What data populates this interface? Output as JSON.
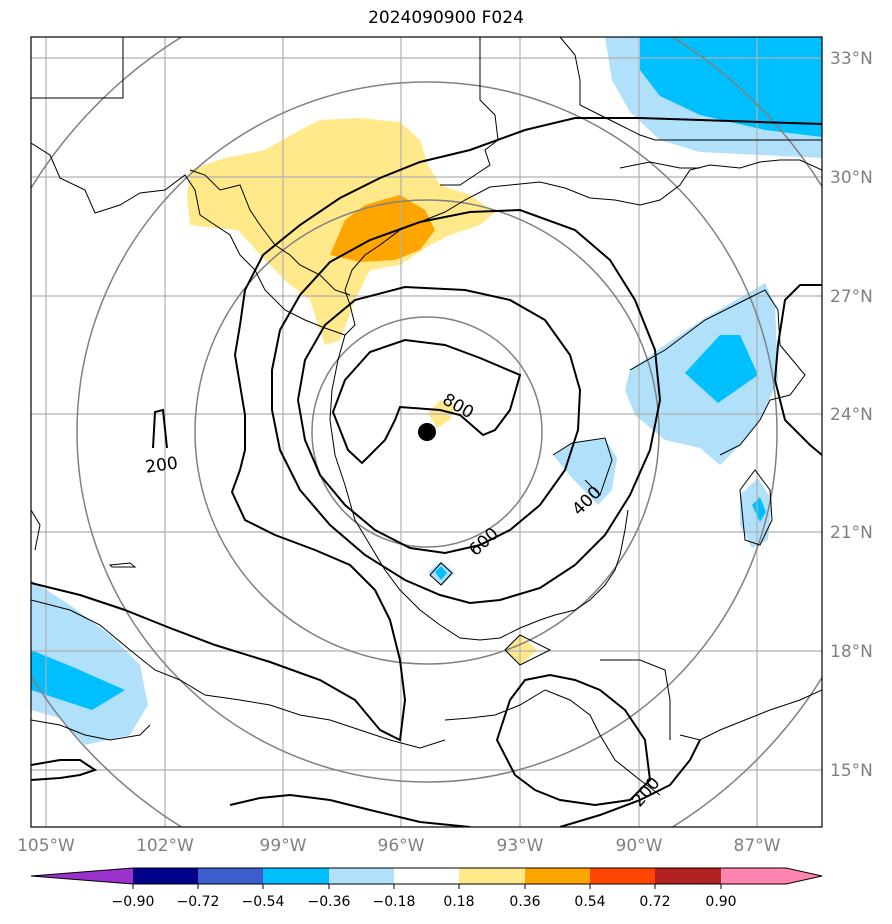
{
  "title": "2024090900 F024",
  "lat_labels": [
    "33°N",
    "30°N",
    "27°N",
    "24°N",
    "21°N",
    "18°N",
    "15°N"
  ],
  "lon_labels": [
    "105°W",
    "102°W",
    "99°W",
    "96°W",
    "93°W",
    "90°W",
    "87°W"
  ],
  "contour_labels": [
    "200",
    "200",
    "400",
    "600",
    "800"
  ],
  "colorbar": {
    "ticks": [
      "−0.90",
      "−0.72",
      "−0.54",
      "−0.36",
      "−0.18",
      "0.18",
      "0.36",
      "0.54",
      "0.72",
      "0.90"
    ],
    "colors": [
      "#9932cc",
      "#00008b",
      "#3a5fcd",
      "#00bfff",
      "#b0e0fa",
      "#ffffff",
      "#ffe98a",
      "#ffa500",
      "#ff4500",
      "#b22222",
      "#ff85b0"
    ]
  },
  "colors": {
    "grid": "#b0b0b0",
    "range_rings": "#808080",
    "contours": "#000000",
    "coast": "#000000"
  }
}
